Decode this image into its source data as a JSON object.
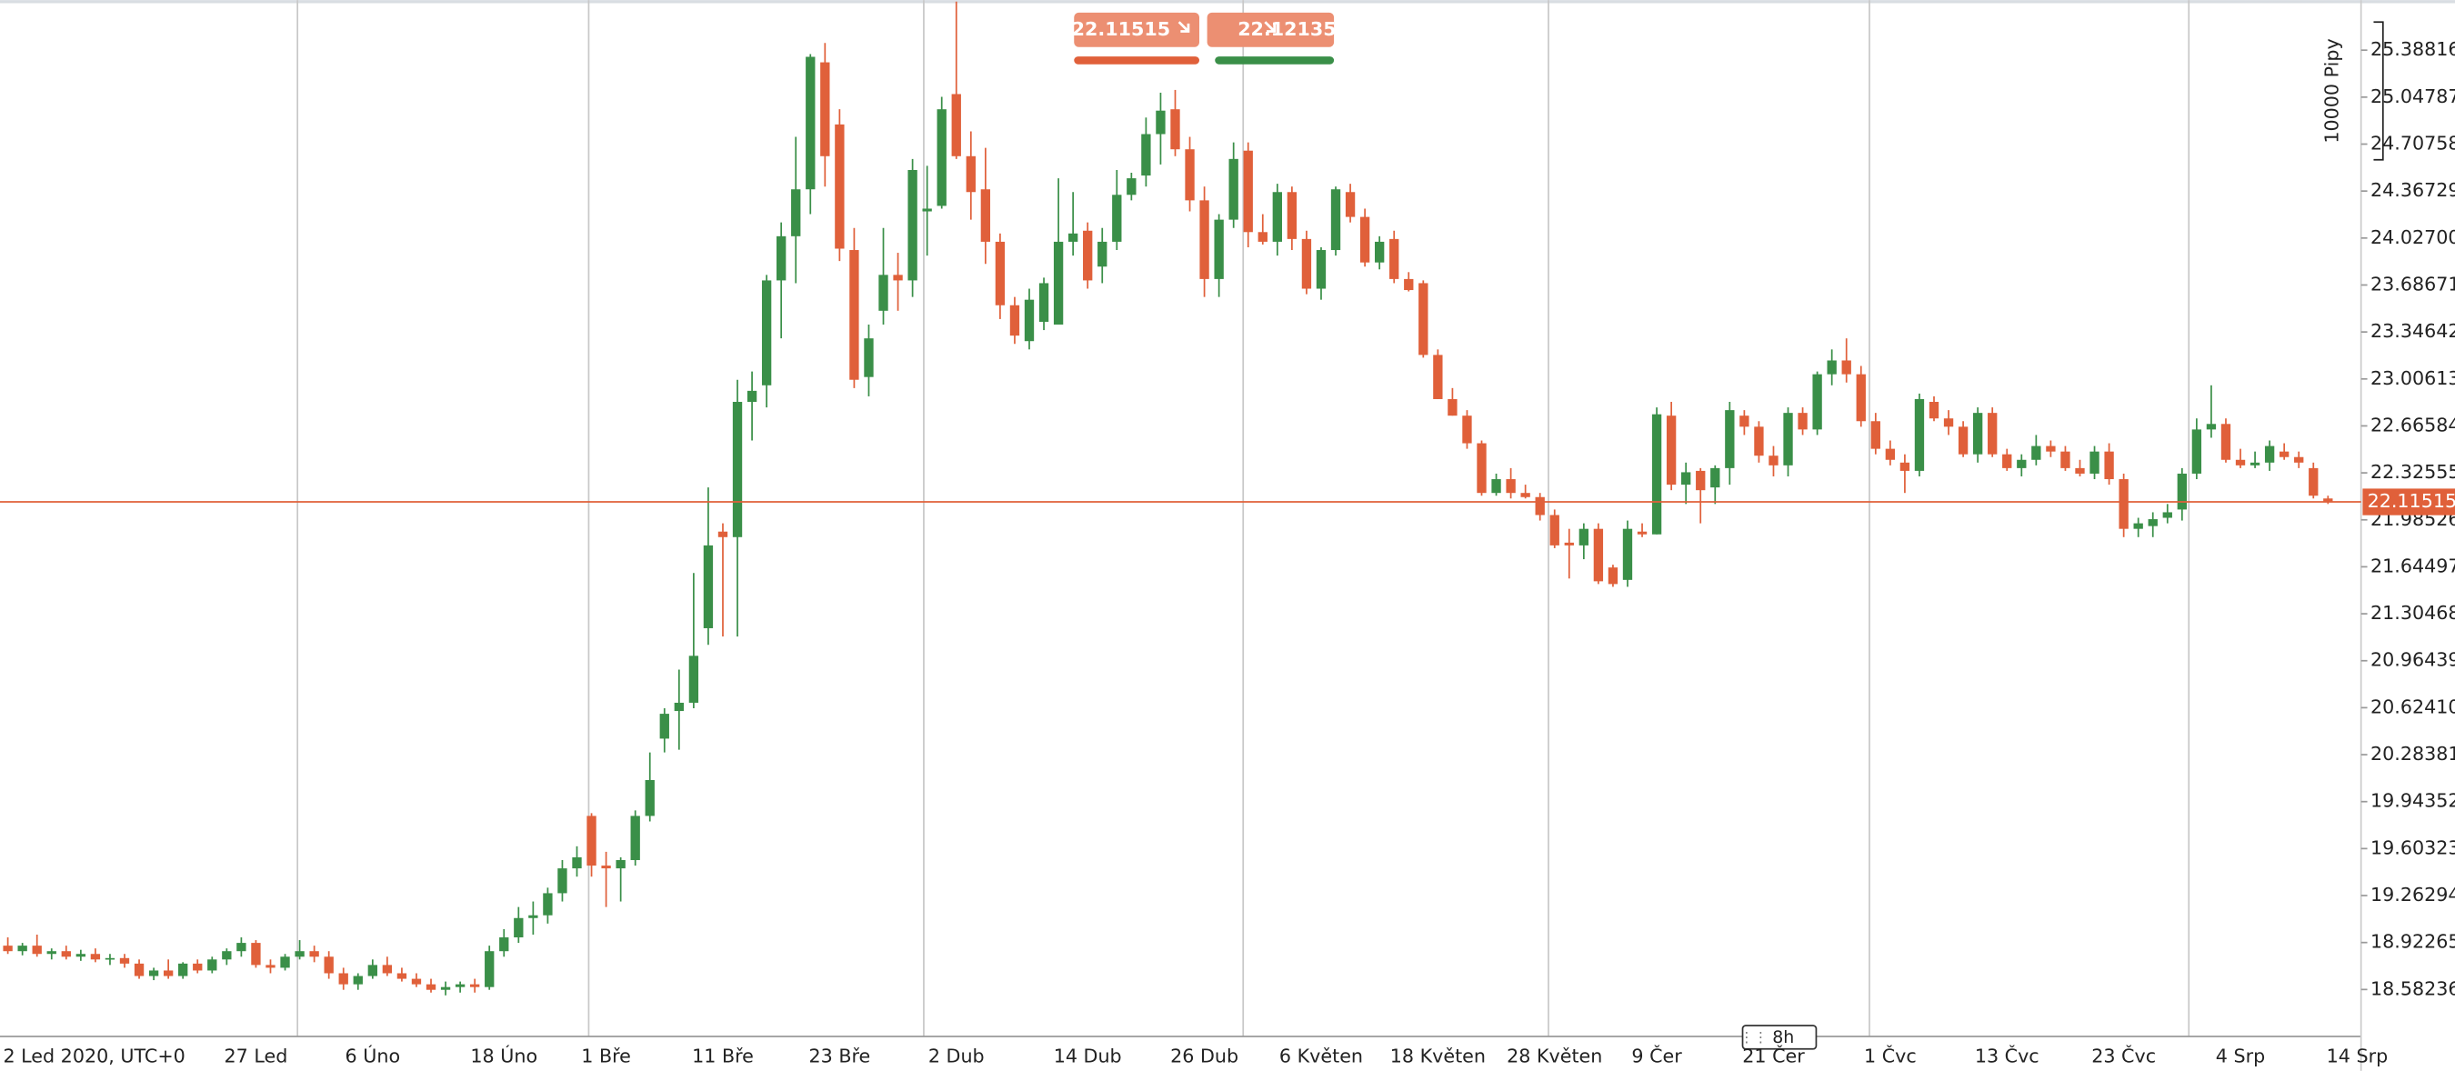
{
  "chart_data": {
    "type": "candlestick",
    "up_color": "#3a8f48",
    "down_color": "#e0603a",
    "ylim": [
      18.242,
      25.751
    ],
    "yticks": [
      25.38816,
      25.04787,
      24.70758,
      24.36729,
      {
        "value": 24.027,
        "label": "24.02700"
      },
      23.68671,
      23.34642,
      23.00613,
      22.66584,
      22.32555,
      21.98526,
      21.64497,
      21.30468,
      20.96439,
      {
        "value": 20.6241,
        "label": "20.62410"
      },
      20.28381,
      19.94352,
      19.60323,
      19.26294,
      18.92265,
      18.58236
    ],
    "last_price": 22.11515,
    "bid": 22.11515,
    "ask": 22.12135,
    "scale_label": "10000 Pipy",
    "timeframe": "8h",
    "categories": [
      "2 Led 2020, UTC+0",
      null,
      null,
      null,
      null,
      null,
      null,
      null,
      null,
      null,
      null,
      null,
      null,
      null,
      null,
      null,
      null,
      "27 Led",
      null,
      null,
      null,
      null,
      null,
      null,
      null,
      "6 Úno",
      null,
      null,
      null,
      null,
      null,
      null,
      null,
      null,
      "18 Úno",
      null,
      null,
      null,
      null,
      null,
      null,
      "1 Bře",
      null,
      null,
      null,
      null,
      null,
      null,
      null,
      "11 Bře",
      null,
      null,
      null,
      null,
      null,
      null,
      null,
      "23 Bře",
      null,
      null,
      null,
      null,
      null,
      null,
      null,
      "2 Dub",
      null,
      null,
      null,
      null,
      null,
      null,
      null,
      null,
      "14 Dub",
      null,
      null,
      null,
      null,
      null,
      null,
      null,
      "26 Dub",
      null,
      null,
      null,
      null,
      null,
      null,
      null,
      "6 Květen",
      null,
      null,
      null,
      null,
      null,
      null,
      null,
      "18 Květen",
      null,
      null,
      null,
      null,
      null,
      null,
      null,
      "28 Květen",
      null,
      null,
      null,
      null,
      null,
      null,
      "9 Čer",
      null,
      null,
      null,
      null,
      null,
      null,
      null,
      "21 Čer",
      null,
      null,
      null,
      null,
      null,
      null,
      null,
      "1 Čvc",
      null,
      null,
      null,
      null,
      null,
      null,
      null,
      "13 Čvc",
      null,
      null,
      null,
      null,
      null,
      null,
      null,
      "23 Čvc",
      null,
      null,
      null,
      null,
      null,
      null,
      null,
      "4 Srp",
      null,
      null,
      null,
      null,
      null,
      null,
      null,
      "14 Srp"
    ],
    "candles": [
      [
        18.9,
        18.96,
        18.84,
        18.86
      ],
      [
        18.86,
        18.92,
        18.83,
        18.9
      ],
      [
        18.9,
        18.98,
        18.82,
        18.84
      ],
      [
        18.84,
        18.88,
        18.8,
        18.86
      ],
      [
        18.86,
        18.9,
        18.8,
        18.82
      ],
      [
        18.82,
        18.87,
        18.79,
        18.84
      ],
      [
        18.84,
        18.88,
        18.78,
        18.8
      ],
      [
        18.8,
        18.84,
        18.76,
        18.81
      ],
      [
        18.81,
        18.84,
        18.74,
        18.77
      ],
      [
        18.77,
        18.8,
        18.66,
        18.68
      ],
      [
        18.68,
        18.74,
        18.65,
        18.72
      ],
      [
        18.72,
        18.8,
        18.66,
        18.68
      ],
      [
        18.68,
        18.78,
        18.66,
        18.77
      ],
      [
        18.77,
        18.8,
        18.7,
        18.72
      ],
      [
        18.72,
        18.82,
        18.7,
        18.8
      ],
      [
        18.8,
        18.88,
        18.76,
        18.86
      ],
      [
        18.86,
        18.96,
        18.82,
        18.92
      ],
      [
        18.92,
        18.94,
        18.74,
        18.76
      ],
      [
        18.76,
        18.8,
        18.7,
        18.74
      ],
      [
        18.74,
        18.84,
        18.72,
        18.82
      ],
      [
        18.82,
        18.94,
        18.8,
        18.86
      ],
      [
        18.86,
        18.9,
        18.78,
        18.82
      ],
      [
        18.82,
        18.86,
        18.66,
        18.7
      ],
      [
        18.7,
        18.74,
        18.58,
        18.62
      ],
      [
        18.62,
        18.7,
        18.58,
        18.68
      ],
      [
        18.68,
        18.8,
        18.66,
        18.76
      ],
      [
        18.76,
        18.82,
        18.68,
        18.7
      ],
      [
        18.7,
        18.74,
        18.64,
        18.66
      ],
      [
        18.66,
        18.7,
        18.6,
        18.62
      ],
      [
        18.62,
        18.66,
        18.56,
        18.58
      ],
      [
        18.58,
        18.64,
        18.54,
        18.6
      ],
      [
        18.6,
        18.64,
        18.56,
        18.62
      ],
      [
        18.62,
        18.66,
        18.56,
        18.6
      ],
      [
        18.6,
        18.9,
        18.58,
        18.86
      ],
      [
        18.86,
        19.02,
        18.82,
        18.96
      ],
      [
        18.96,
        19.18,
        18.92,
        19.1
      ],
      [
        19.1,
        19.22,
        18.98,
        19.12
      ],
      [
        19.12,
        19.32,
        19.06,
        19.28
      ],
      [
        19.28,
        19.52,
        19.22,
        19.46
      ],
      [
        19.46,
        19.62,
        19.4,
        19.54
      ],
      [
        19.84,
        19.86,
        19.4,
        19.48
      ],
      [
        19.48,
        19.58,
        19.18,
        19.46
      ],
      [
        19.46,
        19.54,
        19.22,
        19.52
      ],
      [
        19.52,
        19.88,
        19.48,
        19.84
      ],
      [
        19.84,
        20.3,
        19.8,
        20.1
      ],
      [
        20.4,
        20.62,
        20.3,
        20.58
      ],
      [
        20.6,
        20.9,
        20.32,
        20.66
      ],
      [
        20.66,
        21.6,
        20.62,
        21.0
      ],
      [
        21.2,
        22.22,
        21.08,
        21.8
      ],
      [
        21.9,
        21.96,
        21.14,
        21.86
      ],
      [
        21.86,
        23.0,
        21.14,
        22.84
      ],
      [
        22.84,
        23.06,
        22.56,
        22.92
      ],
      [
        22.96,
        23.76,
        22.8,
        23.72
      ],
      [
        23.72,
        24.14,
        23.3,
        24.04
      ],
      [
        24.04,
        24.76,
        23.7,
        24.38
      ],
      [
        24.38,
        25.36,
        24.2,
        25.34
      ],
      [
        25.3,
        25.44,
        24.4,
        24.62
      ],
      [
        24.85,
        24.96,
        23.86,
        23.95
      ],
      [
        23.94,
        24.1,
        22.94,
        23.0
      ],
      [
        23.02,
        23.4,
        22.88,
        23.3
      ],
      [
        23.5,
        24.1,
        23.4,
        23.76
      ],
      [
        23.76,
        23.92,
        23.5,
        23.72
      ],
      [
        23.72,
        24.6,
        23.6,
        24.52
      ],
      [
        24.22,
        24.55,
        23.9,
        24.24
      ],
      [
        24.26,
        25.05,
        24.24,
        24.96
      ],
      [
        25.07,
        25.74,
        24.6,
        24.62
      ],
      [
        24.62,
        24.8,
        24.16,
        24.36
      ],
      [
        24.38,
        24.68,
        23.84,
        24.0
      ],
      [
        24.0,
        24.06,
        23.44,
        23.54
      ],
      [
        23.54,
        23.6,
        23.26,
        23.32
      ],
      [
        23.28,
        23.66,
        23.22,
        23.58
      ],
      [
        23.42,
        23.74,
        23.36,
        23.7
      ],
      [
        23.4,
        24.46,
        23.4,
        24.0
      ],
      [
        24.0,
        24.36,
        23.9,
        24.06
      ],
      [
        24.08,
        24.14,
        23.66,
        23.72
      ],
      [
        23.82,
        24.1,
        23.7,
        24.0
      ],
      [
        24.0,
        24.52,
        23.94,
        24.34
      ],
      [
        24.34,
        24.5,
        24.3,
        24.46
      ],
      [
        24.48,
        24.9,
        24.4,
        24.78
      ],
      [
        24.78,
        25.08,
        24.56,
        24.95
      ],
      [
        24.96,
        25.1,
        24.62,
        24.67
      ],
      [
        24.67,
        24.76,
        24.22,
        24.3
      ],
      [
        24.3,
        24.4,
        23.6,
        23.73
      ],
      [
        23.73,
        24.2,
        23.6,
        24.16
      ],
      [
        24.16,
        24.72,
        24.1,
        24.6
      ],
      [
        24.66,
        24.72,
        23.96,
        24.07
      ],
      [
        24.07,
        24.2,
        23.98,
        24.0
      ],
      [
        24.0,
        24.42,
        23.9,
        24.36
      ],
      [
        24.36,
        24.4,
        23.94,
        24.02
      ],
      [
        24.02,
        24.08,
        23.62,
        23.66
      ],
      [
        23.66,
        23.96,
        23.58,
        23.94
      ],
      [
        23.94,
        24.4,
        23.9,
        24.38
      ],
      [
        24.36,
        24.42,
        24.14,
        24.18
      ],
      [
        24.18,
        24.24,
        23.82,
        23.85
      ],
      [
        23.85,
        24.04,
        23.8,
        24.0
      ],
      [
        24.02,
        24.08,
        23.7,
        23.73
      ],
      [
        23.73,
        23.78,
        23.64,
        23.65
      ],
      [
        23.7,
        23.72,
        23.16,
        23.18
      ],
      [
        23.18,
        23.22,
        22.86,
        22.86
      ],
      [
        22.86,
        22.94,
        22.74,
        22.74
      ],
      [
        22.74,
        22.78,
        22.5,
        22.54
      ],
      [
        22.54,
        22.56,
        22.16,
        22.18
      ],
      [
        22.18,
        22.32,
        22.16,
        22.28
      ],
      [
        22.28,
        22.36,
        22.14,
        22.18
      ],
      [
        22.18,
        22.24,
        22.14,
        22.15
      ],
      [
        22.15,
        22.18,
        21.98,
        22.02
      ],
      [
        22.02,
        22.06,
        21.78,
        21.8
      ],
      [
        21.82,
        21.92,
        21.56,
        21.8
      ],
      [
        21.8,
        21.96,
        21.7,
        21.92
      ],
      [
        21.92,
        21.96,
        21.52,
        21.54
      ],
      [
        21.64,
        21.66,
        21.5,
        21.52
      ],
      [
        21.55,
        21.98,
        21.5,
        21.92
      ],
      [
        21.9,
        21.96,
        21.86,
        21.88
      ],
      [
        21.88,
        22.8,
        21.88,
        22.75
      ],
      [
        22.74,
        22.84,
        22.2,
        22.24
      ],
      [
        22.24,
        22.4,
        22.1,
        22.33
      ],
      [
        22.34,
        22.36,
        21.96,
        22.2
      ],
      [
        22.22,
        22.38,
        22.1,
        22.36
      ],
      [
        22.36,
        22.84,
        22.24,
        22.78
      ],
      [
        22.74,
        22.78,
        22.6,
        22.66
      ],
      [
        22.66,
        22.7,
        22.4,
        22.45
      ],
      [
        22.45,
        22.52,
        22.3,
        22.38
      ],
      [
        22.38,
        22.8,
        22.3,
        22.76
      ],
      [
        22.76,
        22.8,
        22.6,
        22.64
      ],
      [
        22.64,
        23.06,
        22.6,
        23.04
      ],
      [
        23.04,
        23.22,
        22.96,
        23.14
      ],
      [
        23.14,
        23.3,
        22.98,
        23.04
      ],
      [
        23.04,
        23.1,
        22.66,
        22.7
      ],
      [
        22.7,
        22.76,
        22.46,
        22.5
      ],
      [
        22.5,
        22.56,
        22.38,
        22.42
      ],
      [
        22.4,
        22.46,
        22.18,
        22.34
      ],
      [
        22.34,
        22.9,
        22.3,
        22.86
      ],
      [
        22.84,
        22.88,
        22.7,
        22.72
      ],
      [
        22.72,
        22.78,
        22.6,
        22.66
      ],
      [
        22.66,
        22.7,
        22.44,
        22.46
      ],
      [
        22.46,
        22.8,
        22.4,
        22.76
      ],
      [
        22.76,
        22.8,
        22.44,
        22.46
      ],
      [
        22.46,
        22.5,
        22.34,
        22.36
      ],
      [
        22.36,
        22.46,
        22.3,
        22.42
      ],
      [
        22.42,
        22.6,
        22.38,
        22.52
      ],
      [
        22.52,
        22.56,
        22.44,
        22.48
      ],
      [
        22.48,
        22.52,
        22.34,
        22.36
      ],
      [
        22.36,
        22.42,
        22.3,
        22.32
      ],
      [
        22.32,
        22.52,
        22.28,
        22.48
      ],
      [
        22.48,
        22.54,
        22.24,
        22.28
      ],
      [
        22.28,
        22.32,
        21.86,
        21.92
      ],
      [
        21.92,
        22.0,
        21.86,
        21.96
      ],
      [
        21.94,
        22.04,
        21.86,
        21.99
      ],
      [
        22.0,
        22.1,
        21.96,
        22.04
      ],
      [
        22.06,
        22.36,
        21.98,
        22.32
      ],
      [
        22.32,
        22.72,
        22.28,
        22.64
      ],
      [
        22.64,
        22.96,
        22.58,
        22.68
      ],
      [
        22.68,
        22.72,
        22.4,
        22.42
      ],
      [
        22.42,
        22.5,
        22.36,
        22.38
      ],
      [
        22.38,
        22.48,
        22.36,
        22.4
      ],
      [
        22.4,
        22.56,
        22.34,
        22.52
      ],
      [
        22.48,
        22.54,
        22.42,
        22.44
      ],
      [
        22.44,
        22.48,
        22.36,
        22.4
      ],
      [
        22.36,
        22.4,
        22.14,
        22.16
      ],
      [
        22.14,
        22.16,
        22.1,
        22.11515
      ],
      null,
      null
    ]
  }
}
